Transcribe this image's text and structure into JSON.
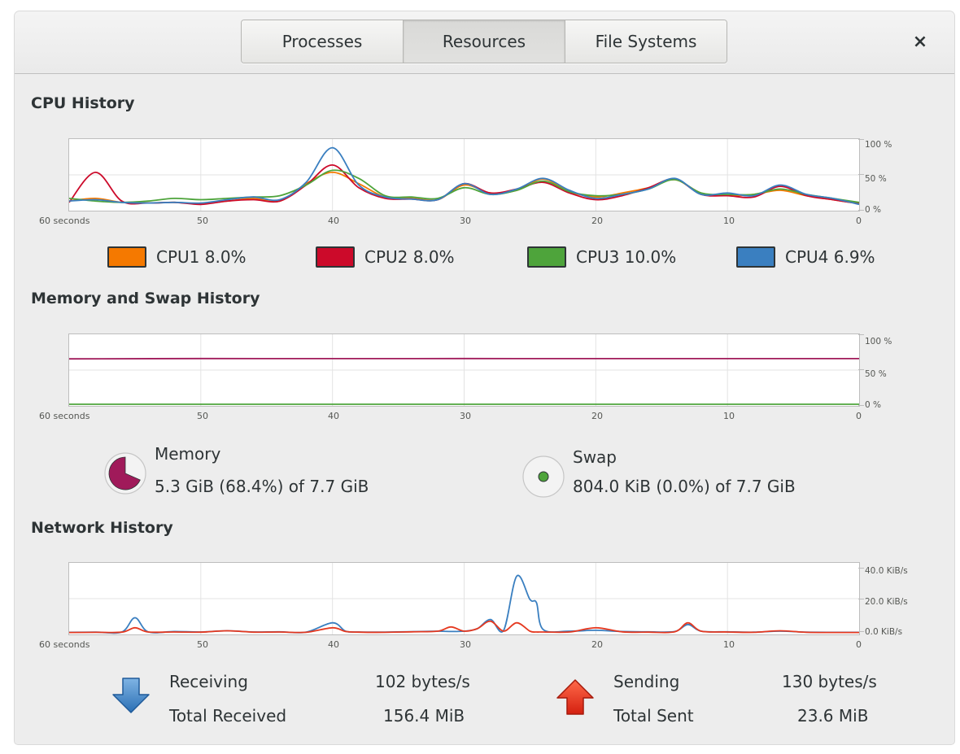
{
  "tabs": [
    "Processes",
    "Resources",
    "File Systems"
  ],
  "active_tab": "Resources",
  "close_label": "×",
  "cpu": {
    "title": "CPU History",
    "y_labels": [
      "100 %",
      "50 %",
      "0 %"
    ],
    "x_labels": [
      "60 seconds",
      "50",
      "40",
      "30",
      "20",
      "10",
      "0"
    ],
    "legend": [
      {
        "name": "CPU1",
        "value": "8.0%",
        "color": "#f57900"
      },
      {
        "name": "CPU2",
        "value": "8.0%",
        "color": "#cc0a2a"
      },
      {
        "name": "CPU3",
        "value": "10.0%",
        "color": "#4ea43b"
      },
      {
        "name": "CPU4",
        "value": "6.9%",
        "color": "#3a7fc0"
      }
    ]
  },
  "memory": {
    "title": "Memory and Swap History",
    "y_labels": [
      "100 %",
      "50 %",
      "0 %"
    ],
    "x_labels": [
      "60 seconds",
      "50",
      "40",
      "30",
      "20",
      "10",
      "0"
    ],
    "memory_label": "Memory",
    "memory_value": "5.3 GiB (68.4%) of 7.7 GiB",
    "memory_fraction": 0.684,
    "memory_color": "#a01a5a",
    "swap_label": "Swap",
    "swap_value": "804.0 KiB (0.0%) of 7.7 GiB",
    "swap_color": "#4ea43b"
  },
  "network": {
    "title": "Network History",
    "y_labels": [
      "40.0 KiB/s",
      "20.0 KiB/s",
      "0.0 KiB/s"
    ],
    "x_labels": [
      "60 seconds",
      "50",
      "40",
      "30",
      "20",
      "10",
      "0"
    ],
    "receiving_label": "Receiving",
    "receiving_value": "102 bytes/s",
    "total_received_label": "Total Received",
    "total_received_value": "156.4 MiB",
    "sending_label": "Sending",
    "sending_value": "130 bytes/s",
    "total_sent_label": "Total Sent",
    "total_sent_value": "23.6 MiB",
    "receive_color": "#3a7fc0",
    "send_color": "#e53920"
  },
  "chart_data": [
    {
      "type": "line",
      "title": "CPU History",
      "xlabel": "",
      "ylabel": "",
      "x": [
        60,
        58,
        56,
        54,
        52,
        50,
        48,
        46,
        44,
        42,
        40,
        38,
        36,
        34,
        32,
        30,
        28,
        26,
        24,
        22,
        20,
        18,
        16,
        14,
        12,
        10,
        8,
        6,
        4,
        2,
        0
      ],
      "xlim": [
        60,
        0
      ],
      "ylim": [
        0,
        100
      ],
      "y_unit": "%",
      "series": [
        {
          "name": "CPU1",
          "values": [
            12,
            16,
            10,
            9,
            10,
            8,
            12,
            16,
            12,
            38,
            55,
            38,
            18,
            16,
            14,
            36,
            24,
            28,
            45,
            26,
            18,
            24,
            32,
            44,
            24,
            20,
            22,
            28,
            20,
            14,
            8
          ]
        },
        {
          "name": "CPU2",
          "values": [
            10,
            55,
            12,
            9,
            10,
            7,
            12,
            14,
            12,
            36,
            66,
            32,
            16,
            15,
            14,
            38,
            24,
            30,
            40,
            24,
            14,
            20,
            32,
            45,
            22,
            20,
            18,
            34,
            20,
            14,
            8
          ]
        },
        {
          "name": "CPU3",
          "values": [
            16,
            12,
            10,
            12,
            16,
            14,
            16,
            18,
            20,
            36,
            58,
            46,
            20,
            18,
            16,
            32,
            22,
            28,
            42,
            26,
            20,
            22,
            30,
            44,
            24,
            22,
            22,
            30,
            22,
            16,
            10
          ]
        },
        {
          "name": "CPU4",
          "values": [
            12,
            14,
            10,
            9,
            10,
            9,
            14,
            18,
            14,
            40,
            92,
            36,
            18,
            15,
            14,
            38,
            22,
            30,
            46,
            28,
            16,
            22,
            30,
            46,
            22,
            24,
            20,
            36,
            22,
            16,
            7
          ]
        }
      ]
    },
    {
      "type": "line",
      "title": "Memory and Swap History",
      "xlabel": "",
      "ylabel": "",
      "x": [
        60,
        50,
        40,
        30,
        20,
        10,
        0
      ],
      "xlim": [
        60,
        0
      ],
      "ylim": [
        0,
        100
      ],
      "y_unit": "%",
      "series": [
        {
          "name": "Memory",
          "values": [
            68,
            68.5,
            68.4,
            68.5,
            68.4,
            68.4,
            68.4
          ]
        },
        {
          "name": "Swap",
          "values": [
            0,
            0,
            0,
            0,
            0,
            0,
            0
          ]
        }
      ]
    },
    {
      "type": "line",
      "title": "Network History",
      "xlabel": "",
      "ylabel": "",
      "x": [
        60,
        58,
        56,
        55,
        54,
        52,
        50,
        48,
        46,
        44,
        42,
        40,
        39,
        38,
        36,
        34,
        32,
        31,
        30,
        29,
        28,
        27,
        26,
        25,
        24.5,
        24,
        22,
        20,
        18,
        16,
        14,
        13,
        12,
        10,
        8,
        6,
        4,
        2,
        0
      ],
      "xlim": [
        60,
        0
      ],
      "ylim": [
        0,
        40
      ],
      "y_unit": "KiB/s",
      "series": [
        {
          "name": "Receiving",
          "values": [
            0.3,
            0.4,
            0.5,
            9,
            0.6,
            0.8,
            0.5,
            1.2,
            0.5,
            0.6,
            0.4,
            6,
            1,
            0.5,
            0.4,
            0.7,
            1,
            0.8,
            1,
            2.5,
            8,
            1.5,
            34,
            20,
            18,
            2,
            1,
            1.5,
            0.8,
            0.6,
            0.8,
            5,
            1,
            0.6,
            0.4,
            1,
            0.4,
            0.3,
            0.3
          ]
        },
        {
          "name": "Sending",
          "values": [
            0.2,
            0.3,
            0.4,
            3,
            0.5,
            0.5,
            0.4,
            1.2,
            0.4,
            0.5,
            0.3,
            3,
            0.8,
            0.4,
            0.3,
            0.6,
            1,
            3.5,
            1,
            2.5,
            7,
            1,
            6,
            1,
            0.5,
            0.5,
            0.5,
            3,
            0.6,
            0.4,
            0.6,
            6,
            1,
            0.5,
            0.3,
            1.2,
            0.3,
            0.2,
            0.2
          ]
        }
      ]
    }
  ]
}
